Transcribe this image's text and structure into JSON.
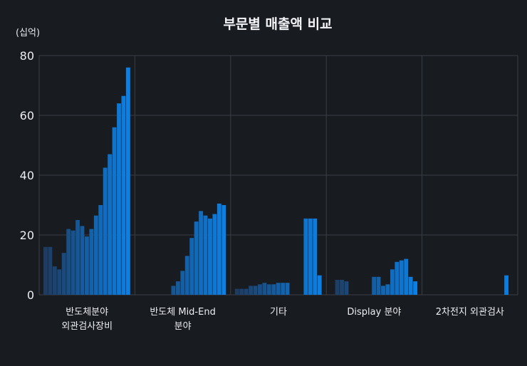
{
  "chart_data": {
    "type": "bar",
    "title": "부문별 매출액 비교",
    "unit_label": "(십억)",
    "ylim": [
      0,
      80
    ],
    "yticks": [
      0,
      20,
      40,
      60,
      80
    ],
    "grid": true,
    "categories": [
      {
        "label_lines": [
          "반도체분야",
          "외관검사장비"
        ],
        "values": [
          16,
          16,
          9.5,
          8.5,
          14,
          22,
          21.5,
          25,
          23,
          19.5,
          22,
          26.5,
          30,
          42.5,
          47,
          56,
          64,
          66.5,
          76
        ]
      },
      {
        "label_lines": [
          "반도체 Mid-End",
          "분야"
        ],
        "values": [
          0,
          0,
          0,
          0,
          0,
          0,
          0,
          3,
          4.5,
          8,
          13,
          19,
          24.5,
          28,
          26.5,
          25.5,
          27,
          30.5,
          30
        ]
      },
      {
        "label_lines": [
          "기타"
        ],
        "values": [
          2,
          2,
          2,
          3,
          3,
          3.5,
          4,
          3.5,
          3.5,
          4,
          4,
          4,
          0,
          0,
          0,
          25.5,
          25.5,
          25.5,
          6.5
        ]
      },
      {
        "label_lines": [
          "Display 분야"
        ],
        "values": [
          0,
          5,
          5,
          4.5,
          0,
          0,
          0,
          0,
          0,
          6,
          6,
          3,
          3.5,
          8.5,
          11,
          11.5,
          12,
          6,
          4.5
        ]
      },
      {
        "label_lines": [
          "2차전지 외관검사"
        ],
        "values": [
          0,
          0,
          0,
          0,
          0,
          0,
          0,
          0,
          0,
          0,
          0,
          0,
          0,
          0,
          0,
          0,
          0,
          6.5,
          0
        ]
      }
    ],
    "colors": {
      "bar_start": "#1e3a5f",
      "bar_end": "#0a82e8",
      "grid": "#3a3e45",
      "background": "#181b20"
    }
  }
}
